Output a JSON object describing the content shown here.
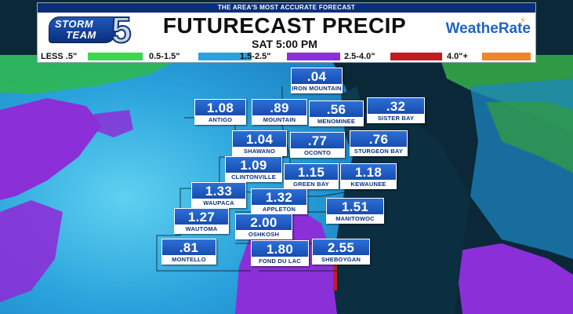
{
  "header": {
    "tagline": "THE AREA'S MOST ACCURATE FORECAST",
    "title": "FUTURECAST PRECIP",
    "subtitle": "SAT  5:00 PM",
    "logo_left": {
      "word1": "STORM",
      "word2": "TEAM",
      "number": "5"
    },
    "logo_right": "WeatheRate"
  },
  "legend": [
    {
      "label": "LESS .5\"",
      "color": "#3bd84a"
    },
    {
      "label": "0.5-1.5\"",
      "color": "#2aa3dc"
    },
    {
      "label": "1.5-2.5\"",
      "color": "#8b2fd8"
    },
    {
      "label": "2.5-4.0\"",
      "color": "#c01e24"
    },
    {
      "label": "4.0\"+",
      "color": "#f0862a"
    }
  ],
  "cities": [
    {
      "value": ".04",
      "name": "IRON MOUNTAIN"
    },
    {
      "value": "1.08",
      "name": "ANTIGO"
    },
    {
      "value": ".89",
      "name": "MOUNTAIN"
    },
    {
      "value": ".56",
      "name": "MENOMINEE"
    },
    {
      "value": ".32",
      "name": "SISTER BAY"
    },
    {
      "value": "1.04",
      "name": "SHAWANO"
    },
    {
      "value": ".77",
      "name": "OCONTO"
    },
    {
      "value": ".76",
      "name": "STURGEON BAY"
    },
    {
      "value": "1.09",
      "name": "CLINTONVILLE"
    },
    {
      "value": "1.15",
      "name": "GREEN BAY"
    },
    {
      "value": "1.18",
      "name": "KEWAUNEE"
    },
    {
      "value": "1.33",
      "name": "WAUPACA"
    },
    {
      "value": "1.32",
      "name": "APPLETON"
    },
    {
      "value": "1.27",
      "name": "WAUTOMA"
    },
    {
      "value": "2.00",
      "name": "OSHKOSH"
    },
    {
      "value": "1.51",
      "name": "MANITOWOC"
    },
    {
      "value": ".81",
      "name": "MONTELLO"
    },
    {
      "value": "1.80",
      "name": "FOND DU LAC"
    },
    {
      "value": "2.55",
      "name": "SHEBOYGAN"
    }
  ],
  "colors": {
    "water": "#0b2e40",
    "precip_light": "#3bd84a",
    "precip_moderate": "#2aa3dc",
    "precip_heavy": "#8b2fd8",
    "precip_extreme": "#c01e24",
    "label_box": "#1c56c0"
  }
}
